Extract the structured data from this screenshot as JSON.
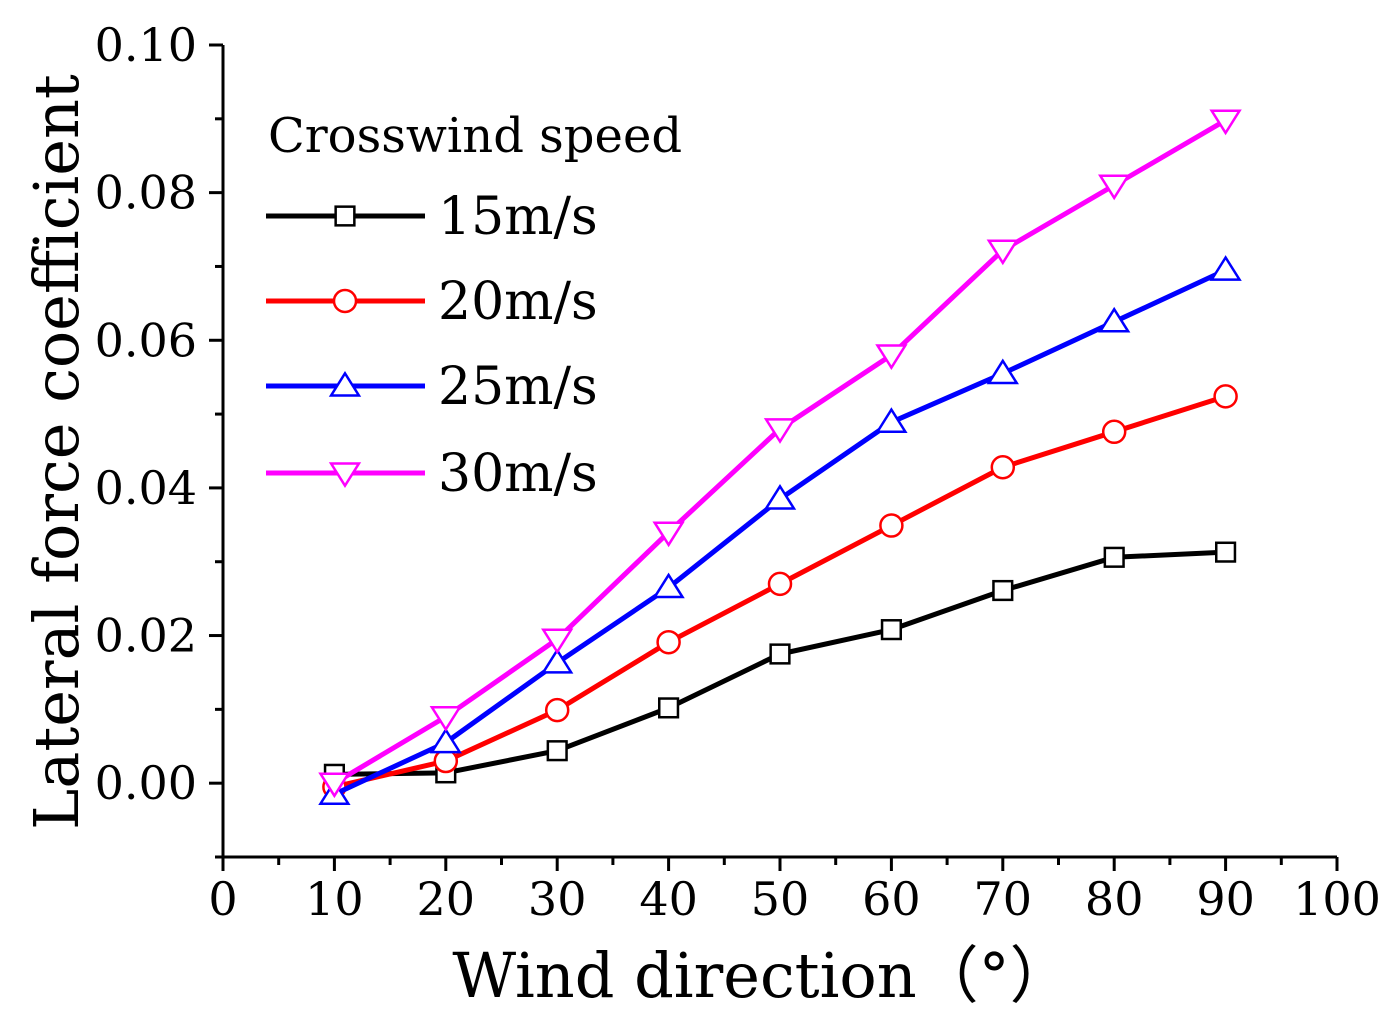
{
  "chart_data": {
    "type": "line",
    "xlabel": "Wind direction（°）",
    "ylabel": "Lateral force coefficient",
    "xlim": [
      0,
      100
    ],
    "ylim": [
      -0.01,
      0.1
    ],
    "x_ticks": [
      "0",
      "10",
      "20",
      "30",
      "40",
      "50",
      "60",
      "70",
      "80",
      "90",
      "100"
    ],
    "y_ticks": [
      "0.00",
      "0.02",
      "0.04",
      "0.06",
      "0.08",
      "0.10"
    ],
    "x": [
      10,
      20,
      30,
      40,
      50,
      60,
      70,
      80,
      90
    ],
    "legend_title": "Crosswind speed",
    "legend_position": "top-left",
    "series": [
      {
        "name": "15m/s",
        "color": "#000000",
        "marker": "square",
        "values": [
          0.0012,
          0.0014,
          0.0044,
          0.0102,
          0.0175,
          0.0208,
          0.0261,
          0.0306,
          0.0313
        ]
      },
      {
        "name": "20m/s",
        "color": "#ff0000",
        "marker": "circle",
        "values": [
          -0.0005,
          0.003,
          0.0099,
          0.0191,
          0.027,
          0.0349,
          0.0428,
          0.0476,
          0.0524
        ]
      },
      {
        "name": "25m/s",
        "color": "#0000ff",
        "marker": "triangle-up",
        "values": [
          -0.0015,
          0.0055,
          0.0163,
          0.0265,
          0.0385,
          0.0489,
          0.0555,
          0.0625,
          0.0695
        ]
      },
      {
        "name": "30m/s",
        "color": "#ff00ff",
        "marker": "triangle-down",
        "values": [
          0.0,
          0.009,
          0.0195,
          0.034,
          0.048,
          0.058,
          0.0722,
          0.081,
          0.0898
        ]
      }
    ]
  }
}
